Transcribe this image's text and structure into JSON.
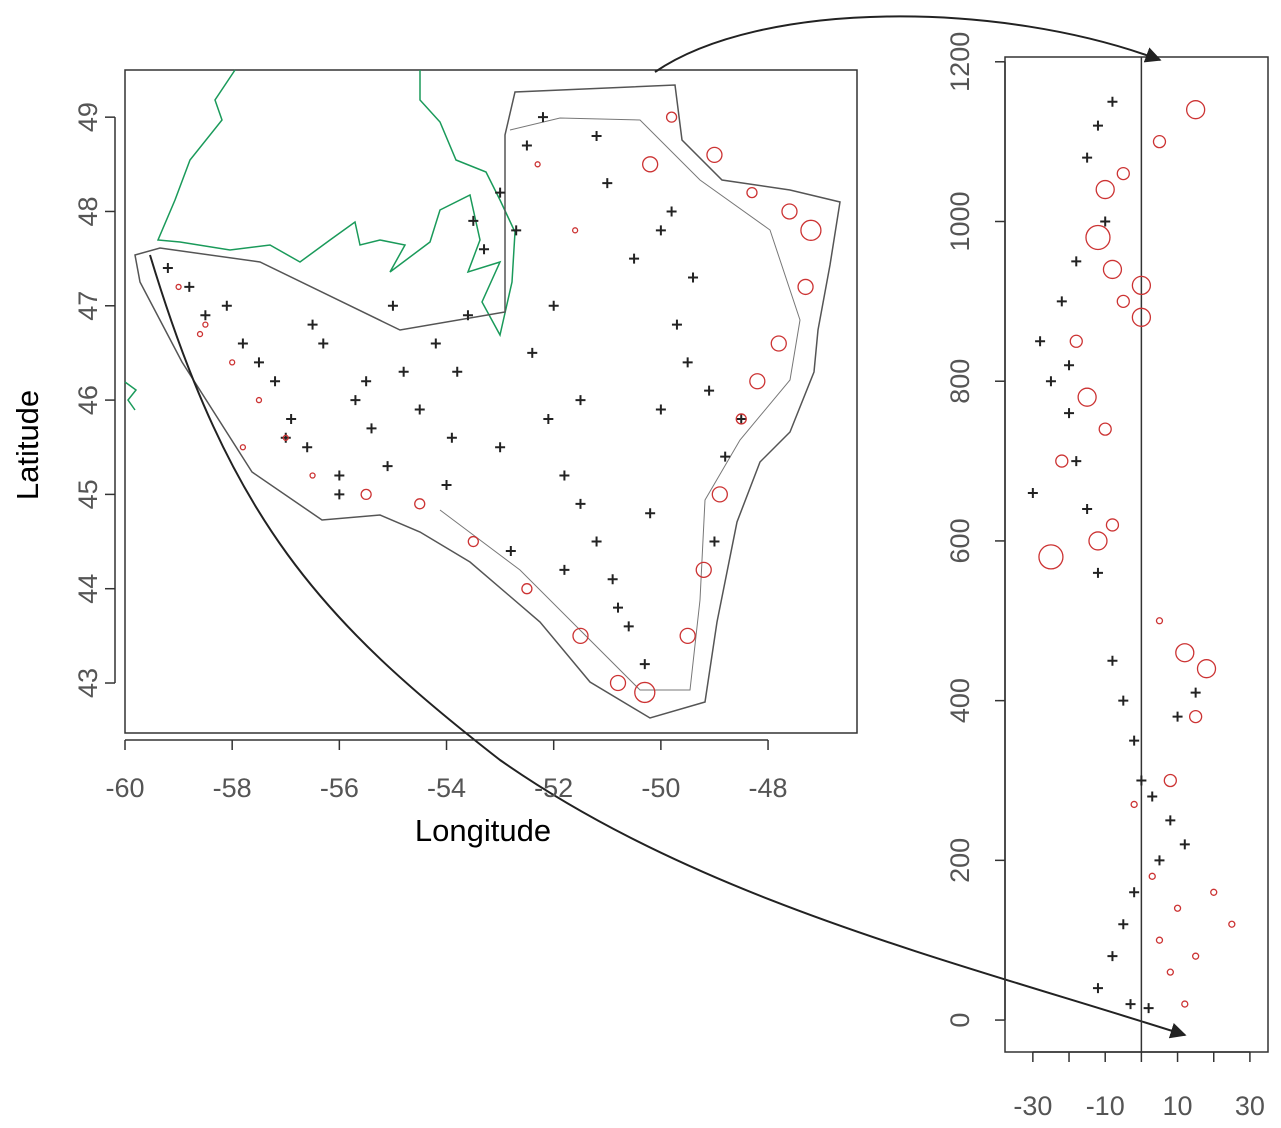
{
  "chart_data": [
    {
      "type": "scatter",
      "xlabel": "Longitude",
      "ylabel": "Latitude",
      "xlim": [
        -60,
        -46.34
      ],
      "ylim": [
        42.47,
        49.5
      ],
      "xticks": [
        -60,
        -58,
        -56,
        -54,
        -52,
        -50,
        -48
      ],
      "yticks": [
        43,
        44,
        45,
        46,
        47,
        48,
        49
      ],
      "series": [
        {
          "marker": "plus",
          "color": "#222222",
          "x": [
            -59.2,
            -58.8,
            -58.5,
            -58.1,
            -57.8,
            -57.5,
            -57.2,
            -56.9,
            -56.6,
            -56.3,
            -56.0,
            -55.7,
            -55.4,
            -55.1,
            -54.8,
            -54.5,
            -54.2,
            -53.9,
            -53.6,
            -53.3,
            -53.0,
            -52.7,
            -52.4,
            -52.1,
            -51.8,
            -51.5,
            -51.2,
            -50.9,
            -50.6,
            -50.3,
            -50.0,
            -49.7,
            -49.4,
            -49.1,
            -48.8,
            -52.5,
            -51.0,
            -50.5,
            -49.5,
            -53.5,
            -52.0,
            -51.5,
            -50.2,
            -49.0,
            -48.5,
            -56.5,
            -55.5,
            -54.0,
            -53.0,
            -52.8,
            -51.8,
            -50.8,
            -50.0,
            -49.8,
            -51.2,
            -52.2,
            -53.8,
            -55.0,
            -56.0,
            -57.0
          ],
          "values": [
            47.4,
            47.2,
            46.9,
            47.0,
            46.6,
            46.4,
            46.2,
            45.8,
            45.5,
            46.6,
            45.2,
            46.0,
            45.7,
            45.3,
            46.3,
            45.9,
            46.6,
            45.6,
            46.9,
            47.6,
            48.2,
            47.8,
            46.5,
            45.8,
            45.2,
            44.9,
            44.5,
            44.1,
            43.6,
            43.2,
            45.9,
            46.8,
            47.3,
            46.1,
            45.4,
            48.7,
            48.3,
            47.5,
            46.4,
            47.9,
            47.0,
            46.0,
            44.8,
            44.5,
            45.8,
            46.8,
            46.2,
            45.1,
            45.5,
            44.4,
            44.2,
            43.8,
            47.8,
            48.0,
            48.8,
            49.0,
            46.3,
            47.0,
            45.0,
            45.6
          ]
        },
        {
          "marker": "circle",
          "color": "#cc3333",
          "x": [
            -59.0,
            -58.5,
            -58.0,
            -57.5,
            -57.0,
            -56.5,
            -55.5,
            -54.5,
            -53.5,
            -52.5,
            -51.5,
            -50.8,
            -50.3,
            -49.5,
            -49.2,
            -48.9,
            -48.5,
            -48.2,
            -47.8,
            -47.3,
            -47.2,
            -47.6,
            -48.3,
            -49.0,
            -49.8,
            -50.2,
            -51.6,
            -52.3,
            -57.8,
            -58.6
          ],
          "values": [
            47.2,
            46.8,
            46.4,
            46.0,
            45.6,
            45.2,
            45.0,
            44.9,
            44.5,
            44.0,
            43.5,
            43.0,
            42.9,
            43.5,
            44.2,
            45.0,
            45.8,
            46.2,
            46.6,
            47.2,
            47.8,
            48.0,
            48.2,
            48.6,
            49.0,
            48.5,
            47.8,
            48.5,
            45.5,
            46.7
          ],
          "sizes": [
            1,
            1,
            1,
            1,
            1,
            1,
            2,
            2,
            2,
            2,
            3,
            3,
            4,
            3,
            3,
            3,
            2,
            3,
            3,
            3,
            4,
            3,
            2,
            3,
            2,
            3,
            1,
            1,
            1,
            1
          ]
        }
      ]
    },
    {
      "type": "scatter",
      "xlim": [
        -37.7,
        35
      ],
      "ylim": [
        -40,
        1206
      ],
      "xticks": [
        -30,
        {
          "value": -20,
          "label": null
        },
        -10,
        {
          "value": 0,
          "label": null
        },
        10,
        {
          "value": 20,
          "label": null
        },
        30
      ],
      "yticks": [
        0,
        200,
        400,
        600,
        800,
        1000,
        1200
      ],
      "vline": 0,
      "series": [
        {
          "marker": "plus",
          "color": "#222222",
          "x": [
            -8,
            -12,
            -15,
            -10,
            -18,
            -22,
            -28,
            -25,
            -20,
            -30,
            -15,
            -12,
            -18,
            -20,
            -8,
            -5,
            -2,
            0,
            3,
            8,
            12,
            5,
            -2,
            -5,
            -8,
            -12,
            -3,
            2,
            10,
            15
          ],
          "values": [
            1150,
            1120,
            1080,
            1000,
            950,
            900,
            850,
            800,
            760,
            660,
            640,
            560,
            700,
            820,
            450,
            400,
            350,
            300,
            280,
            250,
            220,
            200,
            160,
            120,
            80,
            40,
            20,
            15,
            380,
            410
          ]
        },
        {
          "marker": "circle",
          "color": "#cc3333",
          "x": [
            5,
            15,
            -10,
            -12,
            -8,
            -5,
            0,
            -18,
            -15,
            -10,
            -22,
            -25,
            -12,
            -8,
            5,
            12,
            18,
            15,
            8,
            -2,
            3,
            10,
            20,
            25,
            15,
            8,
            12,
            5,
            -5,
            0
          ],
          "values": [
            1100,
            1140,
            1040,
            980,
            940,
            900,
            920,
            850,
            780,
            740,
            700,
            580,
            600,
            620,
            500,
            460,
            440,
            380,
            300,
            270,
            180,
            140,
            160,
            120,
            80,
            60,
            20,
            100,
            1060,
            880
          ],
          "sizes": [
            2,
            3,
            3,
            4,
            3,
            2,
            3,
            2,
            3,
            2,
            2,
            4,
            3,
            2,
            1,
            3,
            3,
            2,
            2,
            1,
            1,
            1,
            1,
            1,
            1,
            1,
            1,
            1,
            2,
            3
          ]
        }
      ]
    }
  ]
}
